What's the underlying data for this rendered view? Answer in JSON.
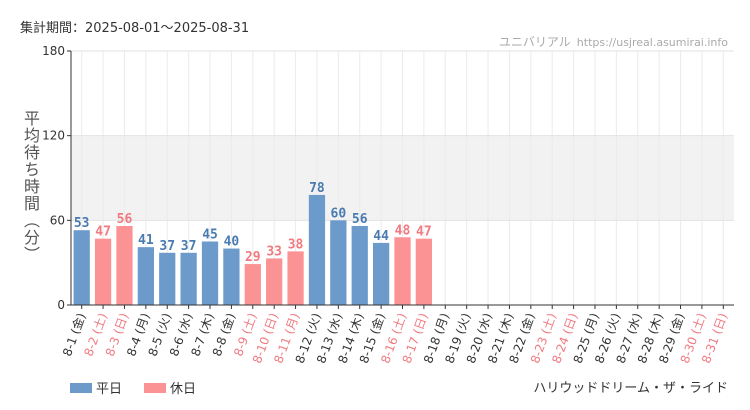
{
  "header": {
    "period_label": "集計期間：2025-08-01〜2025-08-31",
    "source_name": "ユニバリアル",
    "source_url": "https://usjreal.asumirai.info"
  },
  "footer": {
    "ride_name": "ハリウッドドリーム・ザ・ライド"
  },
  "colors": {
    "weekday": "#6b9acb",
    "holiday": "#fb9294",
    "weekday_text": "#4a7bb0",
    "holiday_text": "#f07a80",
    "band": "#f2f2f2"
  },
  "chart_data": {
    "type": "bar",
    "ylabel": "平均待ち時間（分）",
    "ylim": [
      0,
      180
    ],
    "yticks": [
      0,
      60,
      120,
      180
    ],
    "band": [
      60,
      120
    ],
    "grid": true,
    "legend": {
      "placement": "bottom-left",
      "entries": [
        {
          "key": "weekday",
          "label": "平日"
        },
        {
          "key": "holiday",
          "label": "休日"
        }
      ]
    },
    "categories": [
      "8-1 (金)",
      "8-2 (土)",
      "8-3 (日)",
      "8-4 (月)",
      "8-5 (火)",
      "8-6 (水)",
      "8-7 (木)",
      "8-8 (金)",
      "8-9 (土)",
      "8-10 (日)",
      "8-11 (月)",
      "8-12 (火)",
      "8-13 (水)",
      "8-14 (木)",
      "8-15 (金)",
      "8-16 (土)",
      "8-17 (日)",
      "8-18 (月)",
      "8-19 (火)",
      "8-20 (水)",
      "8-21 (木)",
      "8-22 (金)",
      "8-23 (土)",
      "8-24 (日)",
      "8-25 (月)",
      "8-26 (火)",
      "8-27 (水)",
      "8-28 (木)",
      "8-29 (金)",
      "8-30 (土)",
      "8-31 (日)"
    ],
    "values": [
      53,
      47,
      56,
      41,
      37,
      37,
      45,
      40,
      29,
      33,
      38,
      78,
      60,
      56,
      44,
      48,
      47,
      null,
      null,
      null,
      null,
      null,
      null,
      null,
      null,
      null,
      null,
      null,
      null,
      null,
      null
    ],
    "day_type": [
      "weekday",
      "holiday",
      "holiday",
      "weekday",
      "weekday",
      "weekday",
      "weekday",
      "weekday",
      "holiday",
      "holiday",
      "holiday",
      "weekday",
      "weekday",
      "weekday",
      "weekday",
      "holiday",
      "holiday",
      "weekday",
      "weekday",
      "weekday",
      "weekday",
      "weekday",
      "holiday",
      "holiday",
      "weekday",
      "weekday",
      "weekday",
      "weekday",
      "weekday",
      "holiday",
      "holiday"
    ]
  }
}
